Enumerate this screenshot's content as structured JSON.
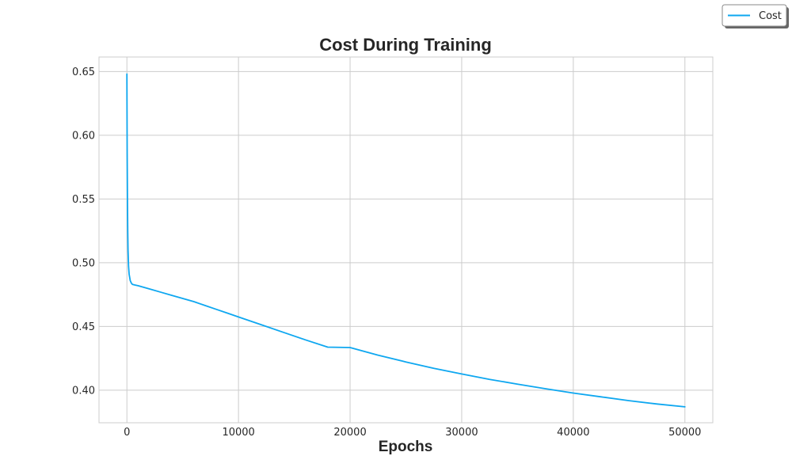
{
  "chart_data": {
    "type": "line",
    "title": "Cost During Training",
    "xlabel": "Epochs",
    "ylabel": "",
    "xlim": [
      -2500,
      52500
    ],
    "ylim": [
      0.3745,
      0.6614
    ],
    "xticks": [
      0,
      10000,
      20000,
      30000,
      40000,
      50000
    ],
    "yticks": [
      0.4,
      0.45,
      0.5,
      0.55,
      0.6,
      0.65
    ],
    "ytick_labels": [
      "0.40",
      "0.45",
      "0.50",
      "0.55",
      "0.60",
      "0.65"
    ],
    "grid": true,
    "legend": {
      "placement": "upper-right-outside",
      "entries": [
        "Cost"
      ]
    },
    "series": [
      {
        "name": "Cost",
        "color": "#0ea7f0",
        "x": [
          0,
          10,
          25,
          50,
          75,
          100,
          150,
          200,
          300,
          400,
          500,
          750,
          1000,
          2000,
          3000,
          4000,
          5000,
          6000,
          7000,
          8000,
          9000,
          10000,
          12000,
          14000,
          16000,
          18000,
          20000,
          22500,
          25000,
          27500,
          30000,
          32500,
          35000,
          37500,
          40000,
          42500,
          45000,
          47500,
          50000
        ],
        "y": [
          0.648,
          0.62,
          0.585,
          0.55,
          0.525,
          0.51,
          0.497,
          0.491,
          0.486,
          0.484,
          0.483,
          0.4825,
          0.482,
          0.4795,
          0.477,
          0.4745,
          0.472,
          0.4695,
          0.4665,
          0.4635,
          0.4605,
          0.4575,
          0.4515,
          0.4455,
          0.4395,
          0.4338,
          0.4335,
          0.4275,
          0.4222,
          0.4172,
          0.4128,
          0.4085,
          0.4048,
          0.4012,
          0.3978,
          0.3948,
          0.3918,
          0.3892,
          0.387
        ]
      }
    ]
  }
}
